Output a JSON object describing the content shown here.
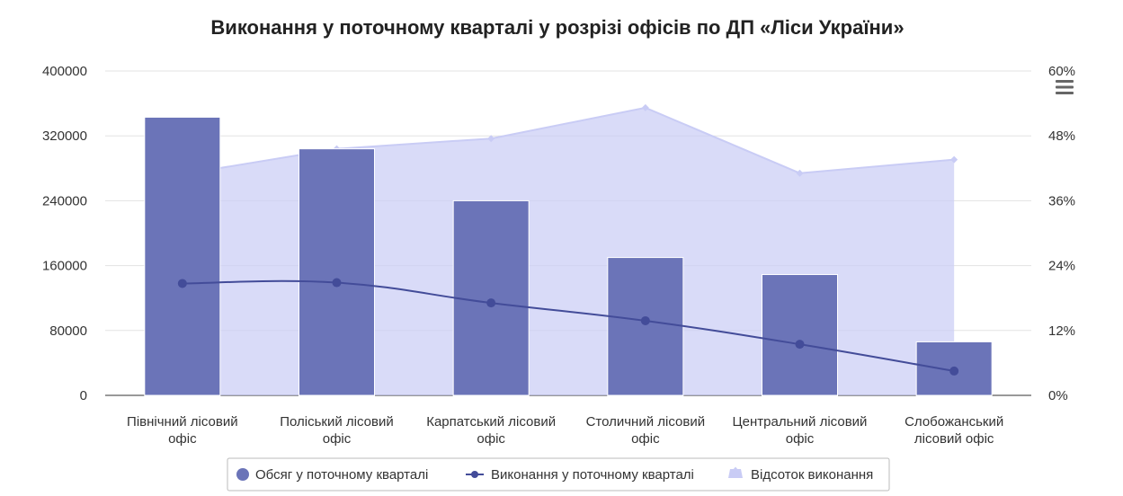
{
  "chart_data": {
    "type": "bar",
    "title": "Виконання у поточному кварталі у розрізі офісів по ДП «Ліси України»",
    "categories": [
      [
        "Північний лісовий",
        "офіс"
      ],
      [
        "Поліський лісовий",
        "офіс"
      ],
      [
        "Карпатський лісовий",
        "офіс"
      ],
      [
        "Столичний лісовий",
        "офіс"
      ],
      [
        "Центральний лісовий",
        "офіс"
      ],
      [
        "Слобожанський",
        "лісовий офіс"
      ]
    ],
    "left_axis": {
      "min": 0,
      "max": 400000,
      "ticks": [
        "0",
        "80000",
        "160000",
        "240000",
        "320000",
        "400000"
      ]
    },
    "right_axis": {
      "min": 0,
      "max": 60,
      "unit": "%",
      "ticks": [
        "0%",
        "12%",
        "24%",
        "36%",
        "48%",
        "60%"
      ]
    },
    "grid": true,
    "legend_position": "bottom",
    "series": [
      {
        "name": "Обсяг у поточному кварталі",
        "type": "bar",
        "axis": "left",
        "color": "#6b74b8",
        "values": [
          343000,
          304000,
          240000,
          170000,
          149000,
          66000
        ]
      },
      {
        "name": "Виконання у поточному кварталі",
        "type": "line",
        "axis": "left",
        "color": "#434c99",
        "values": [
          138000,
          139000,
          114000,
          92000,
          63000,
          30000
        ]
      },
      {
        "name": "Відсоток виконання",
        "type": "area",
        "axis": "right",
        "color": "#c9ccf5",
        "values": [
          40.9,
          45.6,
          47.5,
          53.2,
          41.1,
          43.6
        ]
      }
    ]
  }
}
